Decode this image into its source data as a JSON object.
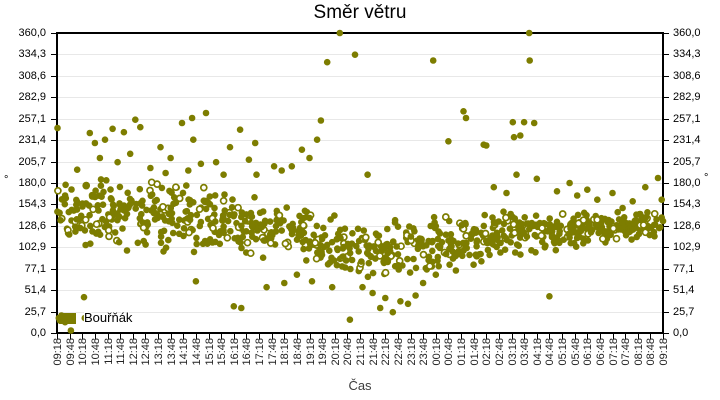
{
  "chart_data": {
    "type": "scatter",
    "title": "Směr větru",
    "xlabel": "Čas",
    "y_unit": "°",
    "ylim": [
      0,
      360
    ],
    "y_tick_count": 15,
    "y_ticks": [
      "0,0",
      "25,7",
      "51,4",
      "77,1",
      "102,9",
      "128,6",
      "154,3",
      "180,0",
      "205,7",
      "231,4",
      "257,1",
      "282,9",
      "308,6",
      "334,3",
      "360,0"
    ],
    "x_ticks": [
      "09:18",
      "09:48",
      "10:18",
      "10:48",
      "11:18",
      "11:48",
      "12:18",
      "12:48",
      "13:18",
      "13:48",
      "14:18",
      "14:48",
      "15:18",
      "15:48",
      "16:18",
      "16:48",
      "17:18",
      "17:48",
      "18:18",
      "18:48",
      "19:18",
      "19:48",
      "20:18",
      "20:48",
      "21:18",
      "21:48",
      "22:18",
      "22:48",
      "23:18",
      "23:48",
      "00:18",
      "00:48",
      "01:18",
      "01:48",
      "02:18",
      "02:48",
      "03:18",
      "03:48",
      "04:18",
      "04:48",
      "05:18",
      "05:48",
      "06:18",
      "06:48",
      "07:18",
      "07:48",
      "08:18",
      "08:48",
      "09:18"
    ],
    "x_range_hours": 24,
    "x_start": "09:18",
    "grid": "horizontal",
    "grid_color": "#e8e8e8",
    "border_color": "#000000",
    "legend_position": "bottom-left",
    "series": [
      {
        "name": "Bouřňák",
        "color": "#7d7d00",
        "marker": "circle"
      }
    ],
    "band_profile_format": [
      "hour_offset_from_09:18",
      "center_deg",
      "spread_deg",
      "count"
    ],
    "band_profile": [
      [
        0,
        140,
        45,
        34
      ],
      [
        1,
        148,
        48,
        36
      ],
      [
        2,
        145,
        48,
        36
      ],
      [
        3,
        142,
        48,
        36
      ],
      [
        4,
        140,
        46,
        36
      ],
      [
        5,
        138,
        46,
        36
      ],
      [
        6,
        134,
        42,
        34
      ],
      [
        7,
        128,
        40,
        34
      ],
      [
        8,
        122,
        38,
        34
      ],
      [
        9,
        117,
        36,
        34
      ],
      [
        10,
        112,
        38,
        34
      ],
      [
        11,
        107,
        42,
        34
      ],
      [
        12,
        100,
        46,
        34
      ],
      [
        13,
        95,
        48,
        34
      ],
      [
        14,
        104,
        44,
        34
      ],
      [
        15,
        112,
        40,
        36
      ],
      [
        16,
        116,
        36,
        36
      ],
      [
        17,
        118,
        33,
        36
      ],
      [
        18,
        120,
        30,
        38
      ],
      [
        19,
        122,
        28,
        38
      ],
      [
        20,
        124,
        24,
        40
      ],
      [
        21,
        126,
        20,
        42
      ],
      [
        22,
        128,
        18,
        44
      ],
      [
        23,
        132,
        20,
        40
      ]
    ],
    "points_format": [
      "hours_after_09:18",
      "direction_deg"
    ],
    "points": [
      [
        0.02,
        246
      ],
      [
        0.07,
        18
      ],
      [
        0.12,
        15
      ],
      [
        0.18,
        21
      ],
      [
        0.25,
        16
      ],
      [
        0.32,
        13
      ],
      [
        0.55,
        3
      ],
      [
        0.6,
        17
      ],
      [
        0.8,
        196
      ],
      [
        1.07,
        43
      ],
      [
        1.1,
        18
      ],
      [
        1.3,
        240
      ],
      [
        1.5,
        228
      ],
      [
        1.7,
        210
      ],
      [
        1.9,
        232
      ],
      [
        2.2,
        245
      ],
      [
        2.4,
        205
      ],
      [
        2.65,
        241
      ],
      [
        2.9,
        215
      ],
      [
        3.1,
        256
      ],
      [
        3.3,
        247
      ],
      [
        3.7,
        198
      ],
      [
        4.1,
        223
      ],
      [
        4.3,
        192
      ],
      [
        4.5,
        210
      ],
      [
        4.95,
        252
      ],
      [
        5.2,
        195
      ],
      [
        5.35,
        258
      ],
      [
        5.4,
        232
      ],
      [
        5.5,
        62
      ],
      [
        5.7,
        203
      ],
      [
        5.9,
        264
      ],
      [
        6.3,
        205
      ],
      [
        6.6,
        190
      ],
      [
        6.85,
        223
      ],
      [
        7.0,
        32
      ],
      [
        7.25,
        244
      ],
      [
        7.3,
        30
      ],
      [
        7.6,
        208
      ],
      [
        7.85,
        228
      ],
      [
        7.9,
        190
      ],
      [
        8.3,
        55
      ],
      [
        8.6,
        200
      ],
      [
        8.9,
        195
      ],
      [
        9.0,
        60
      ],
      [
        9.3,
        200
      ],
      [
        9.5,
        70
      ],
      [
        9.7,
        220
      ],
      [
        10.0,
        210
      ],
      [
        10.1,
        62
      ],
      [
        10.3,
        232
      ],
      [
        10.45,
        255
      ],
      [
        10.7,
        325
      ],
      [
        10.9,
        55
      ],
      [
        11.2,
        360
      ],
      [
        11.6,
        16
      ],
      [
        11.8,
        334
      ],
      [
        12.1,
        55
      ],
      [
        12.3,
        190
      ],
      [
        12.5,
        48
      ],
      [
        12.8,
        30
      ],
      [
        13.0,
        42
      ],
      [
        13.3,
        25
      ],
      [
        13.6,
        38
      ],
      [
        13.9,
        35
      ],
      [
        14.2,
        45
      ],
      [
        14.5,
        60
      ],
      [
        14.9,
        327
      ],
      [
        15.0,
        70
      ],
      [
        15.5,
        230
      ],
      [
        15.8,
        75
      ],
      [
        16.1,
        266
      ],
      [
        16.2,
        258
      ],
      [
        16.5,
        82
      ],
      [
        16.9,
        226
      ],
      [
        17.0,
        225
      ],
      [
        17.3,
        175
      ],
      [
        17.8,
        168
      ],
      [
        18.05,
        253
      ],
      [
        18.1,
        235
      ],
      [
        18.2,
        190
      ],
      [
        18.35,
        237
      ],
      [
        18.5,
        253
      ],
      [
        18.7,
        360
      ],
      [
        18.72,
        327
      ],
      [
        18.9,
        252
      ],
      [
        19.0,
        185
      ],
      [
        19.5,
        44
      ],
      [
        19.8,
        170
      ],
      [
        20.3,
        180
      ],
      [
        20.6,
        165
      ],
      [
        21.0,
        172
      ],
      [
        21.4,
        160
      ],
      [
        22.0,
        168
      ],
      [
        22.4,
        150
      ],
      [
        22.8,
        158
      ],
      [
        23.3,
        175
      ],
      [
        23.8,
        186
      ],
      [
        23.95,
        160
      ]
    ]
  }
}
